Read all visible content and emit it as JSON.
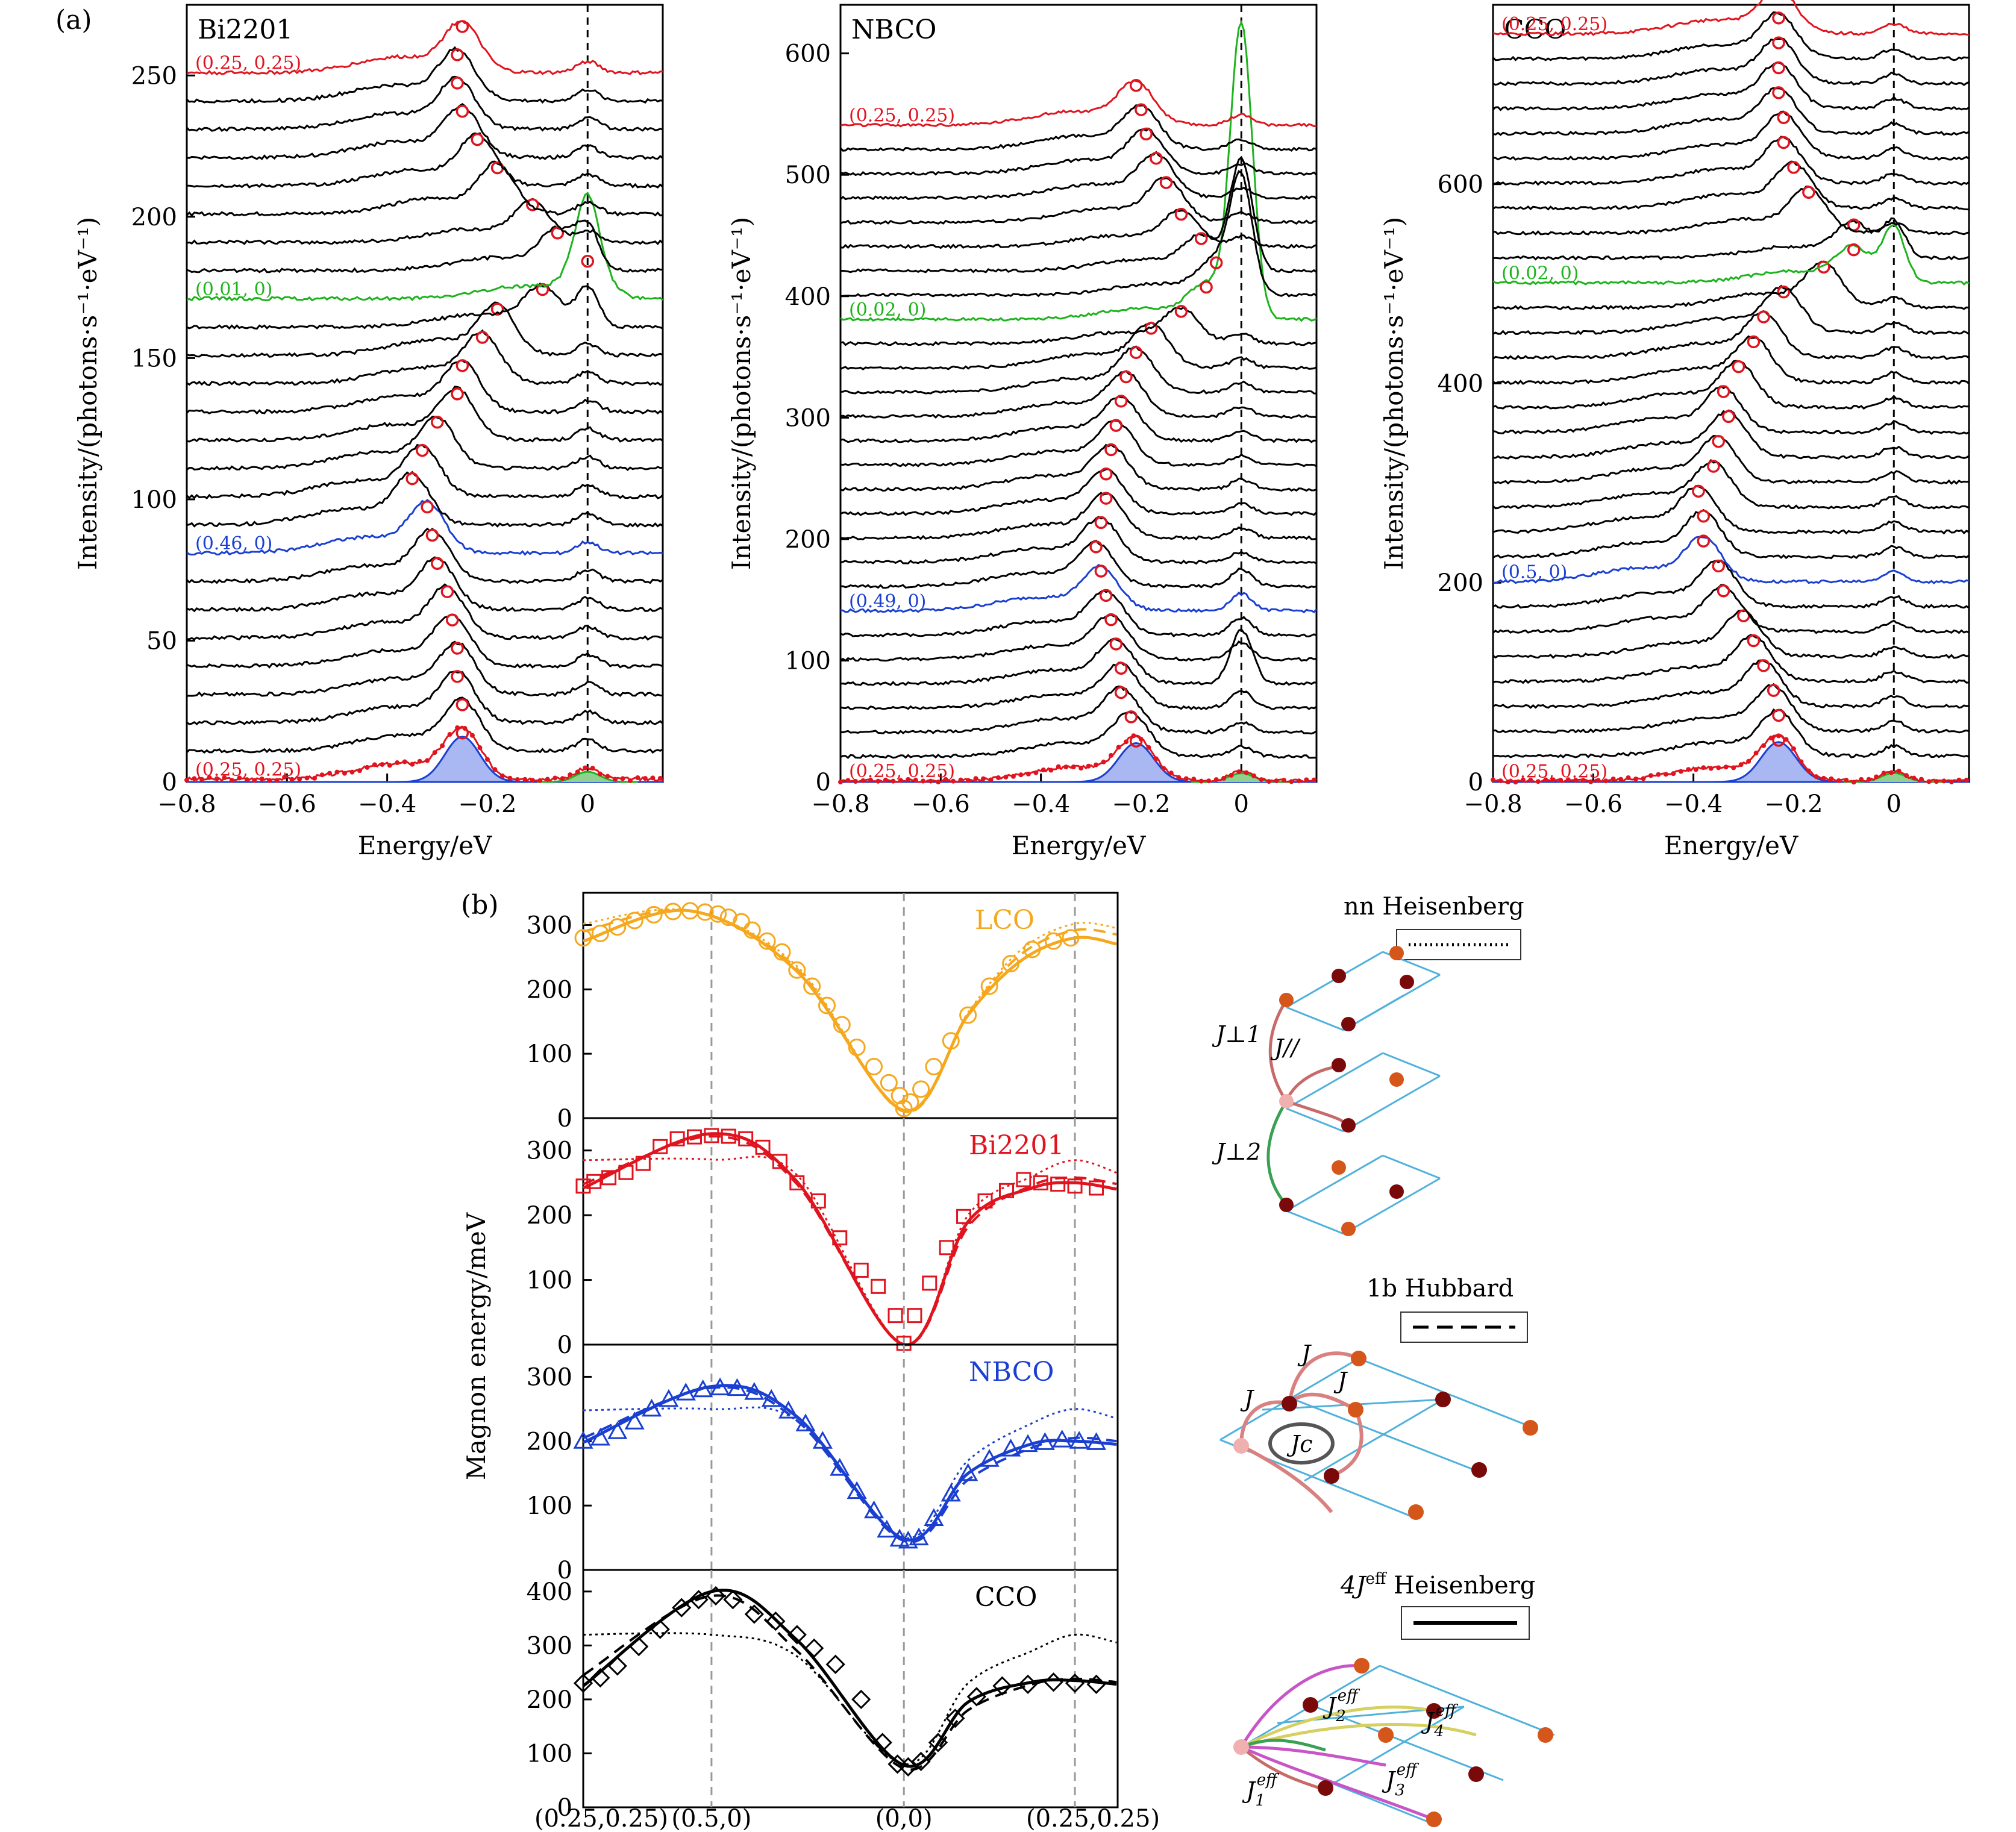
{
  "panel_a": {
    "letter": "(a)",
    "xlabel": "Energy/eV",
    "ylabel": "Intensity/(photons·s⁻¹·eV⁻¹)",
    "xticks": [
      "−0.8",
      "−0.6",
      "−0.4",
      "−0.2",
      "0"
    ]
  },
  "panel_b": {
    "letter": "(b)",
    "ylabel": "Magnon energy/meV",
    "xticks": [
      "(0.25,0.25)",
      "(0.5,0)",
      "(0,0)",
      "(0.25,0.25)"
    ]
  },
  "legend": {
    "nn": "nn Heisenberg",
    "hub": "1b Hubbard",
    "j4": "4J",
    "j4_sup": "eff",
    "j4_rest": " Heisenberg"
  },
  "lattice_labels": {
    "jperp1": "J⊥1",
    "jpar": "J//",
    "jperp2": "J⊥2",
    "j": "J",
    "jc": "Jc",
    "j1": "J1eff",
    "j2": "J2eff",
    "j3": "J3eff",
    "j4": "J4eff"
  },
  "colors": {
    "red": "#e0141e",
    "green": "#1db31d",
    "blue": "#1a3fd1",
    "orange": "#f5a81e",
    "black": "#000000",
    "fill_blue": "#a9b8f2",
    "lattice": "#4fb1dc"
  },
  "chart_data": [
    {
      "type": "line",
      "title": "Bi2201",
      "xlabel": "Energy/eV",
      "ylabel": "Intensity/(photons·s⁻¹·eV⁻¹)",
      "xlim": [
        -0.8,
        0.15
      ],
      "ylim": [
        0,
        275
      ],
      "yticks": [
        0,
        50,
        100,
        150,
        200,
        250
      ],
      "offset_step": 10,
      "n_curves": 26,
      "highlighted": [
        {
          "index": 0,
          "label": "(0.25, 0.25)",
          "color": "red"
        },
        {
          "index": 8,
          "label": "(0.46, 0)",
          "color": "blue"
        },
        {
          "index": 17,
          "label": "(0.01, 0)",
          "color": "green"
        },
        {
          "index": 25,
          "label": "(0.25, 0.25)",
          "color": "red"
        }
      ],
      "peak_energies": [
        -0.25,
        -0.25,
        -0.26,
        -0.26,
        -0.27,
        -0.28,
        -0.3,
        -0.31,
        -0.32,
        -0.35,
        -0.33,
        -0.3,
        -0.26,
        -0.25,
        -0.21,
        -0.18,
        -0.09,
        0.0,
        -0.06,
        -0.11,
        -0.18,
        -0.22,
        -0.25,
        -0.26,
        -0.26,
        -0.25
      ],
      "elastic_peak": 0.0
    },
    {
      "type": "line",
      "title": "NBCO",
      "xlabel": "Energy/eV",
      "ylabel": "Intensity/(photons·s⁻¹·eV⁻¹)",
      "xlim": [
        -0.8,
        0.15
      ],
      "ylim": [
        0,
        640
      ],
      "yticks": [
        0,
        100,
        200,
        300,
        400,
        500,
        600
      ],
      "offset_step": 20,
      "n_curves": 28,
      "highlighted": [
        {
          "index": 0,
          "label": "(0.25, 0.25)",
          "color": "red"
        },
        {
          "index": 7,
          "label": "(0.49, 0)",
          "color": "blue"
        },
        {
          "index": 19,
          "label": "(0.02, 0)",
          "color": "green"
        },
        {
          "index": 27,
          "label": "(0.25, 0.25)",
          "color": "red"
        }
      ],
      "peak_energies": [
        -0.21,
        -0.22,
        -0.24,
        -0.24,
        -0.25,
        -0.26,
        -0.27,
        -0.28,
        -0.29,
        -0.28,
        -0.27,
        -0.27,
        -0.26,
        -0.25,
        -0.24,
        -0.23,
        -0.21,
        -0.18,
        -0.12,
        -0.07,
        -0.05,
        -0.08,
        -0.12,
        -0.15,
        -0.17,
        -0.19,
        -0.2,
        -0.21
      ],
      "elastic_peak": 0.0
    },
    {
      "type": "line",
      "title": "CCO",
      "xlabel": "Energy/eV",
      "ylabel": "Intensity/(photons·s⁻¹·eV⁻¹)",
      "xlim": [
        -0.8,
        0.15
      ],
      "ylim": [
        0,
        780
      ],
      "yticks": [
        0,
        200,
        400,
        600
      ],
      "offset_step": 25,
      "n_curves": 31,
      "highlighted": [
        {
          "index": 0,
          "label": "(0.25, 0.25)",
          "color": "red"
        },
        {
          "index": 8,
          "label": "(0.5, 0)",
          "color": "blue"
        },
        {
          "index": 20,
          "label": "(0.02, 0)",
          "color": "green"
        },
        {
          "index": 30,
          "label": "(0.25, 0.25)",
          "color": "red"
        }
      ],
      "peak_energies": [
        -0.23,
        -0.23,
        -0.24,
        -0.26,
        -0.28,
        -0.3,
        -0.34,
        -0.35,
        -0.38,
        -0.38,
        -0.39,
        -0.36,
        -0.35,
        -0.33,
        -0.34,
        -0.31,
        -0.28,
        -0.26,
        -0.22,
        -0.14,
        -0.08,
        -0.08,
        -0.17,
        -0.2,
        -0.22,
        -0.22,
        -0.23,
        -0.23,
        -0.23,
        -0.23,
        -0.23
      ],
      "elastic_peak": 0.0
    },
    {
      "type": "scatter",
      "title": "LCO",
      "color": "orange",
      "marker": "circle",
      "ylim": [
        0,
        350
      ],
      "yticks": [
        0,
        100,
        200,
        300
      ],
      "points": [
        [
          0.0,
          280
        ],
        [
          0.08,
          287
        ],
        [
          0.16,
          297
        ],
        [
          0.24,
          307
        ],
        [
          0.33,
          316
        ],
        [
          0.42,
          321
        ],
        [
          0.5,
          322
        ],
        [
          0.57,
          320
        ],
        [
          0.63,
          317
        ],
        [
          0.68,
          312
        ],
        [
          0.74,
          305
        ],
        [
          0.79,
          292
        ],
        [
          0.86,
          275
        ],
        [
          0.93,
          258
        ],
        [
          1.0,
          230
        ],
        [
          1.07,
          205
        ],
        [
          1.14,
          175
        ],
        [
          1.21,
          145
        ],
        [
          1.28,
          110
        ],
        [
          1.36,
          80
        ],
        [
          1.43,
          55
        ],
        [
          1.48,
          35
        ],
        [
          1.5,
          15
        ],
        [
          1.53,
          25
        ],
        [
          1.58,
          45
        ],
        [
          1.64,
          80
        ],
        [
          1.72,
          120
        ],
        [
          1.8,
          160
        ],
        [
          1.9,
          205
        ],
        [
          2.0,
          240
        ],
        [
          2.1,
          262
        ],
        [
          2.2,
          275
        ],
        [
          2.28,
          280
        ]
      ],
      "solid": [
        [
          0,
          275
        ],
        [
          0.5,
          322
        ],
        [
          1.0,
          228
        ],
        [
          1.5,
          12
        ],
        [
          1.8,
          160
        ],
        [
          2.05,
          245
        ],
        [
          2.3,
          280
        ],
        [
          2.5,
          270
        ]
      ],
      "dashed": [
        [
          0,
          290
        ],
        [
          0.5,
          322
        ],
        [
          1.0,
          232
        ],
        [
          1.5,
          10
        ],
        [
          1.8,
          162
        ],
        [
          2.05,
          255
        ],
        [
          2.3,
          292
        ],
        [
          2.5,
          285
        ]
      ],
      "dotted": [
        [
          0,
          302
        ],
        [
          0.5,
          322
        ],
        [
          1.0,
          236
        ],
        [
          1.5,
          10
        ],
        [
          1.8,
          164
        ],
        [
          2.05,
          262
        ],
        [
          2.3,
          302
        ],
        [
          2.5,
          295
        ]
      ]
    },
    {
      "type": "scatter",
      "title": "Bi2201",
      "color": "red",
      "marker": "square",
      "ylim": [
        0,
        350
      ],
      "yticks": [
        0,
        100,
        200,
        300
      ],
      "points": [
        [
          0.0,
          245
        ],
        [
          0.05,
          252
        ],
        [
          0.12,
          258
        ],
        [
          0.2,
          266
        ],
        [
          0.28,
          280
        ],
        [
          0.36,
          306
        ],
        [
          0.44,
          318
        ],
        [
          0.52,
          321
        ],
        [
          0.6,
          323
        ],
        [
          0.68,
          322
        ],
        [
          0.76,
          318
        ],
        [
          0.84,
          305
        ],
        [
          0.92,
          283
        ],
        [
          1.0,
          250
        ],
        [
          1.1,
          222
        ],
        [
          1.2,
          165
        ],
        [
          1.3,
          115
        ],
        [
          1.38,
          90
        ],
        [
          1.46,
          45
        ],
        [
          1.5,
          2
        ],
        [
          1.55,
          45
        ],
        [
          1.62,
          95
        ],
        [
          1.7,
          150
        ],
        [
          1.78,
          198
        ],
        [
          1.88,
          222
        ],
        [
          1.98,
          238
        ],
        [
          2.06,
          255
        ],
        [
          2.14,
          250
        ],
        [
          2.22,
          248
        ],
        [
          2.3,
          245
        ],
        [
          2.4,
          242
        ]
      ],
      "solid": [
        [
          0,
          242
        ],
        [
          0.6,
          326
        ],
        [
          1.0,
          252
        ],
        [
          1.5,
          0
        ],
        [
          1.8,
          190
        ],
        [
          2.1,
          242
        ],
        [
          2.3,
          250
        ],
        [
          2.5,
          240
        ]
      ],
      "dashed": [
        [
          0,
          248
        ],
        [
          0.6,
          322
        ],
        [
          1.0,
          248
        ],
        [
          1.5,
          0
        ],
        [
          1.8,
          182
        ],
        [
          2.1,
          246
        ],
        [
          2.3,
          258
        ],
        [
          2.5,
          248
        ]
      ],
      "dotted": [
        [
          0,
          285
        ],
        [
          0.6,
          286
        ],
        [
          1.0,
          262
        ],
        [
          1.5,
          0
        ],
        [
          1.8,
          200
        ],
        [
          2.1,
          260
        ],
        [
          2.3,
          285
        ],
        [
          2.5,
          265
        ]
      ]
    },
    {
      "type": "scatter",
      "title": "NBCO",
      "color": "blue",
      "marker": "triangle",
      "ylim": [
        0,
        350
      ],
      "yticks": [
        0,
        100,
        200,
        300
      ],
      "points": [
        [
          0.0,
          200
        ],
        [
          0.08,
          205
        ],
        [
          0.16,
          215
        ],
        [
          0.24,
          230
        ],
        [
          0.32,
          250
        ],
        [
          0.4,
          265
        ],
        [
          0.48,
          275
        ],
        [
          0.56,
          280
        ],
        [
          0.64,
          283
        ],
        [
          0.72,
          282
        ],
        [
          0.8,
          276
        ],
        [
          0.88,
          265
        ],
        [
          0.96,
          247
        ],
        [
          1.04,
          227
        ],
        [
          1.12,
          200
        ],
        [
          1.2,
          158
        ],
        [
          1.28,
          122
        ],
        [
          1.36,
          92
        ],
        [
          1.42,
          62
        ],
        [
          1.48,
          48
        ],
        [
          1.52,
          45
        ],
        [
          1.57,
          50
        ],
        [
          1.64,
          80
        ],
        [
          1.72,
          118
        ],
        [
          1.8,
          150
        ],
        [
          1.9,
          172
        ],
        [
          2.0,
          188
        ],
        [
          2.08,
          195
        ],
        [
          2.16,
          198
        ],
        [
          2.24,
          202
        ],
        [
          2.32,
          200
        ],
        [
          2.4,
          198
        ]
      ],
      "solid": [
        [
          0,
          198
        ],
        [
          0.6,
          285
        ],
        [
          1.0,
          238
        ],
        [
          1.5,
          48
        ],
        [
          1.8,
          150
        ],
        [
          2.1,
          196
        ],
        [
          2.3,
          200
        ],
        [
          2.5,
          195
        ]
      ],
      "dashed": [
        [
          0,
          205
        ],
        [
          0.6,
          283
        ],
        [
          1.0,
          232
        ],
        [
          1.5,
          45
        ],
        [
          1.8,
          140
        ],
        [
          2.1,
          190
        ],
        [
          2.3,
          205
        ],
        [
          2.5,
          200
        ]
      ],
      "dotted": [
        [
          0,
          248
        ],
        [
          0.6,
          250
        ],
        [
          1.0,
          232
        ],
        [
          1.5,
          50
        ],
        [
          1.8,
          170
        ],
        [
          2.1,
          228
        ],
        [
          2.3,
          250
        ],
        [
          2.5,
          235
        ]
      ]
    },
    {
      "type": "scatter",
      "title": "CCO",
      "color": "black",
      "marker": "diamond",
      "ylim": [
        0,
        440
      ],
      "yticks": [
        0,
        100,
        200,
        300,
        400
      ],
      "points": [
        [
          0.0,
          230
        ],
        [
          0.08,
          240
        ],
        [
          0.16,
          262
        ],
        [
          0.26,
          298
        ],
        [
          0.36,
          330
        ],
        [
          0.46,
          370
        ],
        [
          0.54,
          385
        ],
        [
          0.62,
          392
        ],
        [
          0.7,
          385
        ],
        [
          0.8,
          358
        ],
        [
          0.9,
          345
        ],
        [
          1.0,
          320
        ],
        [
          1.08,
          295
        ],
        [
          1.18,
          265
        ],
        [
          1.3,
          200
        ],
        [
          1.4,
          120
        ],
        [
          1.47,
          80
        ],
        [
          1.52,
          75
        ],
        [
          1.58,
          85
        ],
        [
          1.66,
          120
        ],
        [
          1.74,
          165
        ],
        [
          1.84,
          205
        ],
        [
          1.96,
          225
        ],
        [
          2.08,
          228
        ],
        [
          2.2,
          232
        ],
        [
          2.3,
          230
        ],
        [
          2.4,
          228
        ]
      ],
      "solid": [
        [
          0,
          225
        ],
        [
          0.6,
          400
        ],
        [
          1.0,
          310
        ],
        [
          1.5,
          78
        ],
        [
          1.8,
          195
        ],
        [
          2.1,
          232
        ],
        [
          2.3,
          235
        ],
        [
          2.5,
          228
        ]
      ],
      "dashed": [
        [
          0,
          245
        ],
        [
          0.6,
          392
        ],
        [
          1.0,
          290
        ],
        [
          1.5,
          72
        ],
        [
          1.8,
          180
        ],
        [
          2.1,
          228
        ],
        [
          2.3,
          238
        ],
        [
          2.5,
          232
        ]
      ],
      "dotted": [
        [
          0,
          320
        ],
        [
          0.6,
          320
        ],
        [
          1.0,
          280
        ],
        [
          1.5,
          80
        ],
        [
          1.8,
          230
        ],
        [
          2.1,
          290
        ],
        [
          2.3,
          320
        ],
        [
          2.5,
          305
        ]
      ]
    }
  ]
}
